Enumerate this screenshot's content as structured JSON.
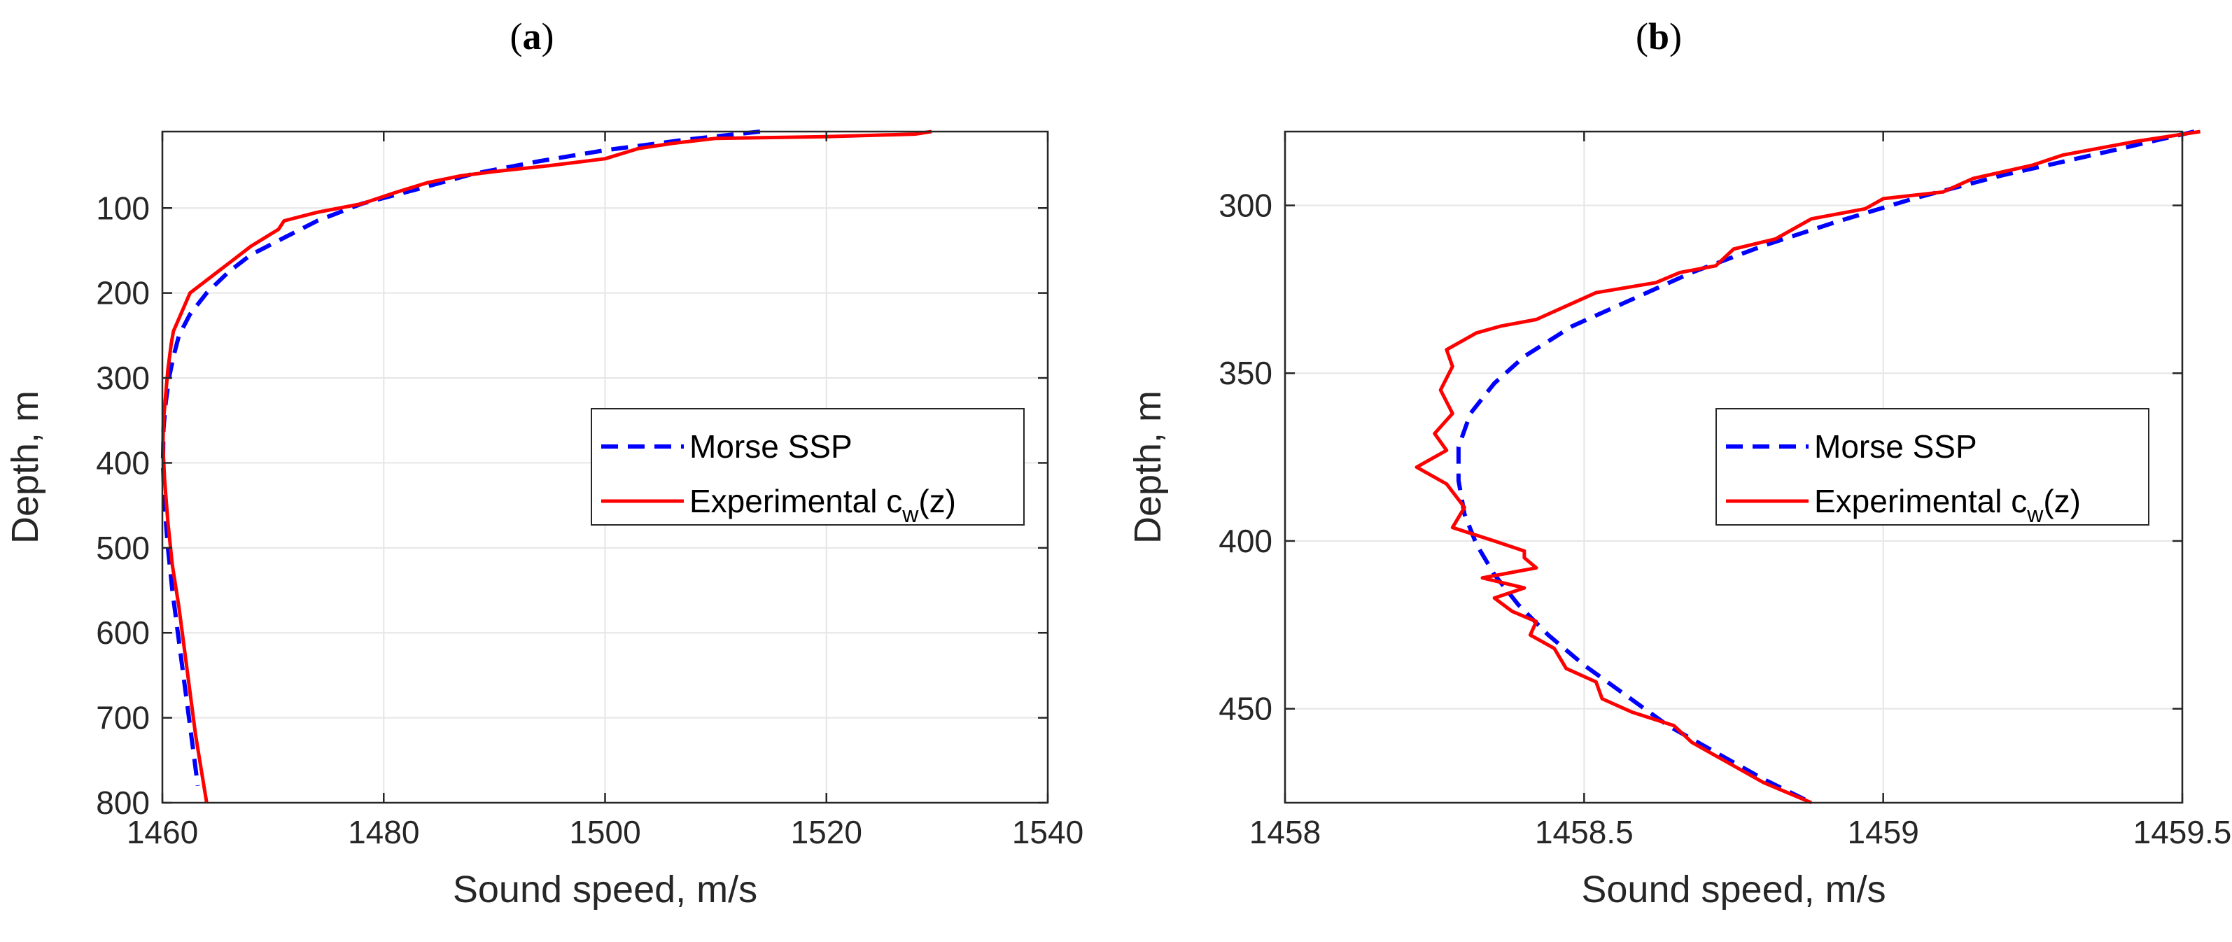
{
  "chart_data": [
    {
      "id": "a",
      "panel_label": "a",
      "type": "line",
      "xlabel": "Sound speed, m/s",
      "ylabel": "Depth, m",
      "xlim": [
        1460,
        1540
      ],
      "ylim": [
        10,
        800
      ],
      "y_reversed": true,
      "grid": true,
      "xticks": [
        1460,
        1480,
        1500,
        1520,
        1540
      ],
      "xtick_labels": [
        "1460",
        "1480",
        "1500",
        "1520",
        "1540"
      ],
      "yticks": [
        100,
        200,
        300,
        400,
        500,
        600,
        700,
        800
      ],
      "ytick_labels": [
        "100",
        "200",
        "300",
        "400",
        "500",
        "600",
        "700",
        "800"
      ],
      "legend": {
        "placement": "center-right",
        "entries": [
          {
            "series": "Morse SSP",
            "label": "Morse SSP"
          },
          {
            "series": "Experimental",
            "label": "Experimental c",
            "sub": "w",
            "suffix": "(z)"
          }
        ]
      },
      "series": [
        {
          "name": "Morse SSP",
          "color": "#0000ff",
          "style": "dashed",
          "x": [
            1514,
            1507,
            1500,
            1494,
            1488,
            1483,
            1478,
            1474,
            1471,
            1468,
            1466,
            1464,
            1462.5,
            1461.5,
            1461,
            1460.6,
            1460.3,
            1460.1,
            1460.05,
            1460.2,
            1460.5,
            1460.9,
            1461.4,
            1461.9,
            1462.4,
            1462.9,
            1463.2
          ],
          "y": [
            10,
            20,
            32,
            45,
            60,
            78,
            95,
            115,
            135,
            155,
            175,
            200,
            225,
            250,
            275,
            300,
            330,
            360,
            400,
            450,
            500,
            550,
            600,
            650,
            700,
            750,
            780
          ]
        },
        {
          "name": "Experimental",
          "color": "#ff0000",
          "style": "solid",
          "x": [
            1529.5,
            1528,
            1520,
            1510,
            1506,
            1503,
            1500,
            1495,
            1490,
            1487,
            1484,
            1481,
            1478,
            1474,
            1471,
            1470.5,
            1468,
            1466,
            1465.5,
            1464,
            1462.5,
            1462,
            1461.5,
            1461,
            1460.8,
            1460.5,
            1460.3,
            1460.1,
            1460.05,
            1460.2,
            1460.5,
            1460.9,
            1461.5,
            1462,
            1462.5,
            1463,
            1463.5,
            1464
          ],
          "y": [
            10,
            13,
            16,
            18,
            24,
            30,
            42,
            50,
            57,
            62,
            70,
            82,
            95,
            105,
            115,
            125,
            145,
            165,
            170,
            185,
            200,
            215,
            230,
            245,
            260,
            290,
            320,
            350,
            380,
            420,
            470,
            520,
            570,
            620,
            670,
            720,
            760,
            800
          ]
        }
      ]
    },
    {
      "id": "b",
      "panel_label": "b",
      "type": "line",
      "xlabel": "Sound speed, m/s",
      "ylabel": "Depth, m",
      "xlim": [
        1458,
        1459.5
      ],
      "ylim": [
        278,
        478
      ],
      "y_reversed": true,
      "grid": true,
      "xticks": [
        1458,
        1458.5,
        1459,
        1459.5
      ],
      "xtick_labels": [
        "1458",
        "1458.5",
        "1459",
        "1459.5"
      ],
      "yticks": [
        300,
        350,
        400,
        450
      ],
      "ytick_labels": [
        "300",
        "350",
        "400",
        "450"
      ],
      "legend": {
        "placement": "center-right",
        "entries": [
          {
            "series": "Morse SSP",
            "label": "Morse SSP"
          },
          {
            "series": "Experimental",
            "label": "Experimental c",
            "sub": "w",
            "suffix": "(z)"
          }
        ]
      },
      "series": [
        {
          "name": "Morse SSP",
          "color": "#0000ff",
          "style": "dashed",
          "x": [
            1459.52,
            1459.35,
            1459.2,
            1459.05,
            1458.92,
            1458.8,
            1458.68,
            1458.58,
            1458.48,
            1458.4,
            1458.35,
            1458.31,
            1458.29,
            1458.29,
            1458.3,
            1458.32,
            1458.35,
            1458.39,
            1458.44,
            1458.5,
            1458.57,
            1458.64,
            1458.72,
            1458.8,
            1458.88
          ],
          "y": [
            278,
            285,
            291,
            298,
            305,
            312,
            320,
            328,
            336,
            345,
            353,
            362,
            372,
            382,
            392,
            401,
            410,
            419,
            428,
            437,
            446,
            455,
            463,
            471,
            478
          ]
        },
        {
          "name": "Experimental",
          "color": "#ff0000",
          "style": "solid",
          "x": [
            1459.53,
            1459.42,
            1459.3,
            1459.25,
            1459.15,
            1459.1,
            1459,
            1458.97,
            1458.88,
            1458.82,
            1458.75,
            1458.72,
            1458.66,
            1458.62,
            1458.52,
            1458.47,
            1458.42,
            1458.36,
            1458.32,
            1458.3,
            1458.27,
            1458.28,
            1458.26,
            1458.28,
            1458.25,
            1458.27,
            1458.22,
            1458.27,
            1458.3,
            1458.28,
            1458.35,
            1458.4,
            1458.4,
            1458.42,
            1458.33,
            1458.4,
            1458.35,
            1458.38,
            1458.42,
            1458.41,
            1458.45,
            1458.47,
            1458.52,
            1458.53,
            1458.58,
            1458.65,
            1458.68,
            1458.72,
            1458.76,
            1458.8,
            1458.88
          ],
          "y": [
            278,
            281,
            285,
            288,
            292,
            296,
            298,
            301,
            304,
            310,
            313,
            318,
            320,
            323,
            326,
            330,
            334,
            336,
            338,
            340,
            343,
            348,
            355,
            362,
            368,
            373,
            378,
            383,
            390,
            396,
            400,
            403,
            405,
            408,
            411,
            414,
            417,
            421,
            424,
            428,
            432,
            438,
            442,
            447,
            451,
            455,
            460,
            464,
            468,
            472,
            478
          ]
        }
      ]
    }
  ]
}
